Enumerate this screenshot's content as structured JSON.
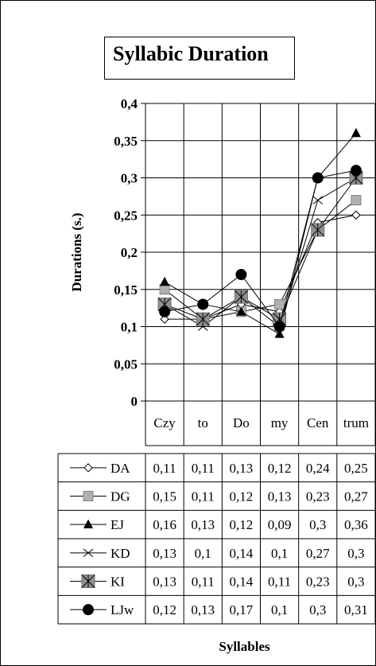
{
  "chart_data": {
    "type": "line",
    "title": "Syllabic Duration",
    "ylabel": "Durations (s.)",
    "xlabel": "Syllables",
    "ylim": [
      0,
      0.4
    ],
    "yticks": [
      "0",
      "0,05",
      "0,1",
      "0,15",
      "0,2",
      "0,25",
      "0,3",
      "0,35",
      "0,4"
    ],
    "categories": [
      "Czy",
      "to",
      "Do",
      "my",
      "Cen",
      "trum"
    ],
    "grid": true,
    "legend": "data-table-below",
    "series": [
      {
        "name": "DA",
        "marker": "diamond",
        "values": [
          0.11,
          0.11,
          0.13,
          0.12,
          0.24,
          0.25
        ],
        "labels": [
          "0,11",
          "0,11",
          "0,13",
          "0,12",
          "0,24",
          "0,25"
        ]
      },
      {
        "name": "DG",
        "marker": "square",
        "values": [
          0.15,
          0.11,
          0.12,
          0.13,
          0.23,
          0.27
        ],
        "labels": [
          "0,15",
          "0,11",
          "0,12",
          "0,13",
          "0,23",
          "0,27"
        ]
      },
      {
        "name": "EJ",
        "marker": "triangle",
        "values": [
          0.16,
          0.13,
          0.12,
          0.09,
          0.3,
          0.36
        ],
        "labels": [
          "0,16",
          "0,13",
          "0,12",
          "0,09",
          "0,3",
          "0,36"
        ]
      },
      {
        "name": "KD",
        "marker": "x",
        "values": [
          0.13,
          0.1,
          0.14,
          0.1,
          0.27,
          0.3
        ],
        "labels": [
          "0,13",
          "0,1",
          "0,14",
          "0,1",
          "0,27",
          "0,3"
        ]
      },
      {
        "name": "KI",
        "marker": "star-square",
        "values": [
          0.13,
          0.11,
          0.14,
          0.11,
          0.23,
          0.3
        ],
        "labels": [
          "0,13",
          "0,11",
          "0,14",
          "0,11",
          "0,23",
          "0,3"
        ]
      },
      {
        "name": "LJw",
        "marker": "circle",
        "values": [
          0.12,
          0.13,
          0.17,
          0.1,
          0.3,
          0.31
        ],
        "labels": [
          "0,12",
          "0,13",
          "0,17",
          "0,1",
          "0,3",
          "0,31"
        ]
      }
    ]
  }
}
